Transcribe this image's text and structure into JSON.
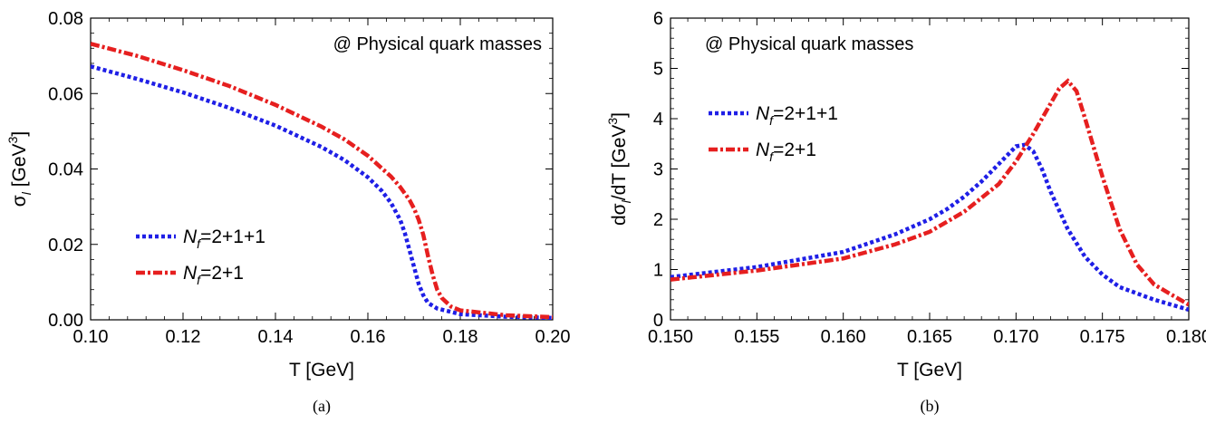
{
  "chart_data": [
    {
      "type": "line",
      "caption": "(a)",
      "annotation": "@ Physical quark masses",
      "xlabel": "T [GeV]",
      "ylabel_base": "σ",
      "ylabel_sub": "l",
      "ylabel_rest": " [GeV",
      "ylabel_sup": "3",
      "ylabel_end": "]",
      "xlim": [
        0.1,
        0.2
      ],
      "ylim": [
        0.0,
        0.08
      ],
      "xticks": [
        "0.10",
        "0.12",
        "0.14",
        "0.16",
        "0.18",
        "0.20"
      ],
      "yticks": [
        "0.00",
        "0.02",
        "0.04",
        "0.06",
        "0.08"
      ],
      "legend_position": "lower-left",
      "series": [
        {
          "name": "N_f=2+1+1",
          "legend_main": "N",
          "legend_sub": "f",
          "legend_rest": "=2+1+1",
          "color": "#1f1fe6",
          "style": "dotted",
          "x": [
            0.1,
            0.11,
            0.12,
            0.13,
            0.14,
            0.15,
            0.155,
            0.16,
            0.163,
            0.165,
            0.167,
            0.168,
            0.169,
            0.17,
            0.171,
            0.172,
            0.173,
            0.175,
            0.18,
            0.19,
            0.2
          ],
          "y": [
            0.0672,
            0.0639,
            0.0603,
            0.0562,
            0.0515,
            0.0458,
            0.0423,
            0.0378,
            0.0342,
            0.031,
            0.0265,
            0.023,
            0.0185,
            0.014,
            0.0095,
            0.0065,
            0.0045,
            0.003,
            0.0015,
            0.0008,
            0.0005
          ]
        },
        {
          "name": "N_f=2+1",
          "legend_main": "N",
          "legend_sub": "f",
          "legend_rest": "=2+1",
          "color": "#e61f1f",
          "style": "dashdot",
          "x": [
            0.1,
            0.11,
            0.12,
            0.13,
            0.14,
            0.15,
            0.155,
            0.16,
            0.165,
            0.167,
            0.169,
            0.17,
            0.171,
            0.172,
            0.173,
            0.174,
            0.175,
            0.176,
            0.178,
            0.18,
            0.19,
            0.2
          ],
          "y": [
            0.0732,
            0.07,
            0.0662,
            0.062,
            0.057,
            0.0512,
            0.0478,
            0.0435,
            0.038,
            0.0352,
            0.0318,
            0.0295,
            0.0265,
            0.0225,
            0.017,
            0.012,
            0.008,
            0.0058,
            0.0035,
            0.0025,
            0.0012,
            0.0007
          ]
        }
      ]
    },
    {
      "type": "line",
      "caption": "(b)",
      "annotation": "@ Physical quark masses",
      "xlabel": "T [GeV]",
      "ylabel_base": "dσ",
      "ylabel_sub": "l",
      "ylabel_rest": "/dT [GeV",
      "ylabel_sup": "3",
      "ylabel_end": "]",
      "xlim": [
        0.15,
        0.18
      ],
      "ylim": [
        0,
        6
      ],
      "xticks": [
        "0.150",
        "0.155",
        "0.160",
        "0.165",
        "0.170",
        "0.175",
        "0.180"
      ],
      "yticks": [
        "0",
        "1",
        "2",
        "3",
        "4",
        "5",
        "6"
      ],
      "legend_position": "upper-left",
      "series": [
        {
          "name": "N_f=2+1+1",
          "legend_main": "N",
          "legend_sub": "f",
          "legend_rest": "=2+1+1",
          "color": "#1f1fe6",
          "style": "dotted",
          "x": [
            0.15,
            0.155,
            0.16,
            0.163,
            0.165,
            0.166,
            0.167,
            0.168,
            0.169,
            0.17,
            0.1705,
            0.171,
            0.1715,
            0.172,
            0.173,
            0.174,
            0.175,
            0.176,
            0.178,
            0.18
          ],
          "y": [
            0.85,
            1.05,
            1.35,
            1.7,
            2.0,
            2.2,
            2.45,
            2.75,
            3.1,
            3.45,
            3.48,
            3.35,
            3.0,
            2.55,
            1.8,
            1.25,
            0.9,
            0.65,
            0.4,
            0.2
          ]
        },
        {
          "name": "N_f=2+1",
          "legend_main": "N",
          "legend_sub": "f",
          "legend_rest": "=2+1",
          "color": "#e61f1f",
          "style": "dashdot",
          "x": [
            0.15,
            0.155,
            0.16,
            0.163,
            0.165,
            0.167,
            0.169,
            0.17,
            0.171,
            0.172,
            0.1725,
            0.173,
            0.1735,
            0.174,
            0.175,
            0.176,
            0.177,
            0.178,
            0.18
          ],
          "y": [
            0.8,
            0.98,
            1.22,
            1.5,
            1.75,
            2.15,
            2.7,
            3.15,
            3.7,
            4.3,
            4.6,
            4.75,
            4.55,
            4.0,
            2.85,
            1.8,
            1.1,
            0.7,
            0.3
          ]
        }
      ]
    }
  ]
}
